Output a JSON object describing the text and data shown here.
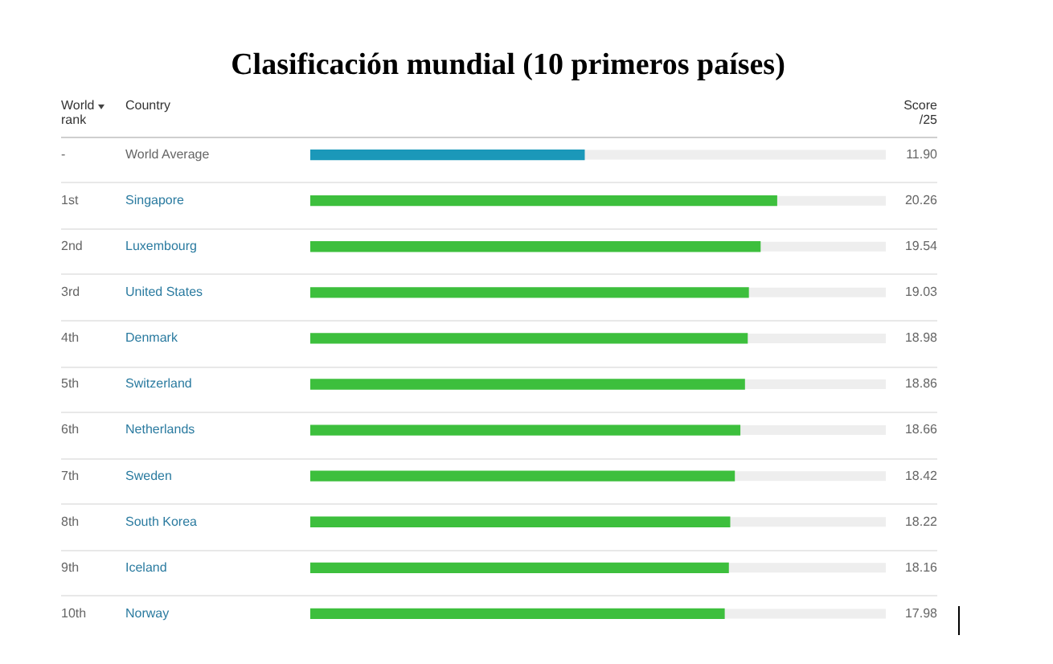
{
  "chart_data": {
    "type": "bar",
    "orientation": "horizontal",
    "title": "Clasificación mundial (10 primeros países)",
    "categories": [
      "World Average",
      "Singapore",
      "Luxembourg",
      "United States",
      "Denmark",
      "Switzerland",
      "Netherlands",
      "Sweden",
      "South Korea",
      "Iceland",
      "Norway"
    ],
    "values": [
      11.9,
      20.26,
      19.54,
      19.03,
      18.98,
      18.86,
      18.66,
      18.42,
      18.22,
      18.16,
      17.98
    ],
    "colors": [
      "#1b98b9",
      "#3dbf3d",
      "#3dbf3d",
      "#3dbf3d",
      "#3dbf3d",
      "#3dbf3d",
      "#3dbf3d",
      "#3dbf3d",
      "#3dbf3d",
      "#3dbf3d",
      "#3dbf3d"
    ],
    "value_labels": [
      "11.90",
      "20.26",
      "19.54",
      "19.03",
      "18.98",
      "18.86",
      "18.66",
      "18.42",
      "18.22",
      "18.16",
      "17.98"
    ],
    "xlim": [
      0,
      25
    ],
    "tick_labels": "y",
    "grid": "y",
    "annotations": [
      "World rank",
      "Country",
      "Score /25",
      "-",
      "1st",
      "2nd",
      "3rd",
      "4th",
      "5th",
      "6th",
      "7th",
      "8th",
      "9th",
      "10th"
    ]
  }
}
